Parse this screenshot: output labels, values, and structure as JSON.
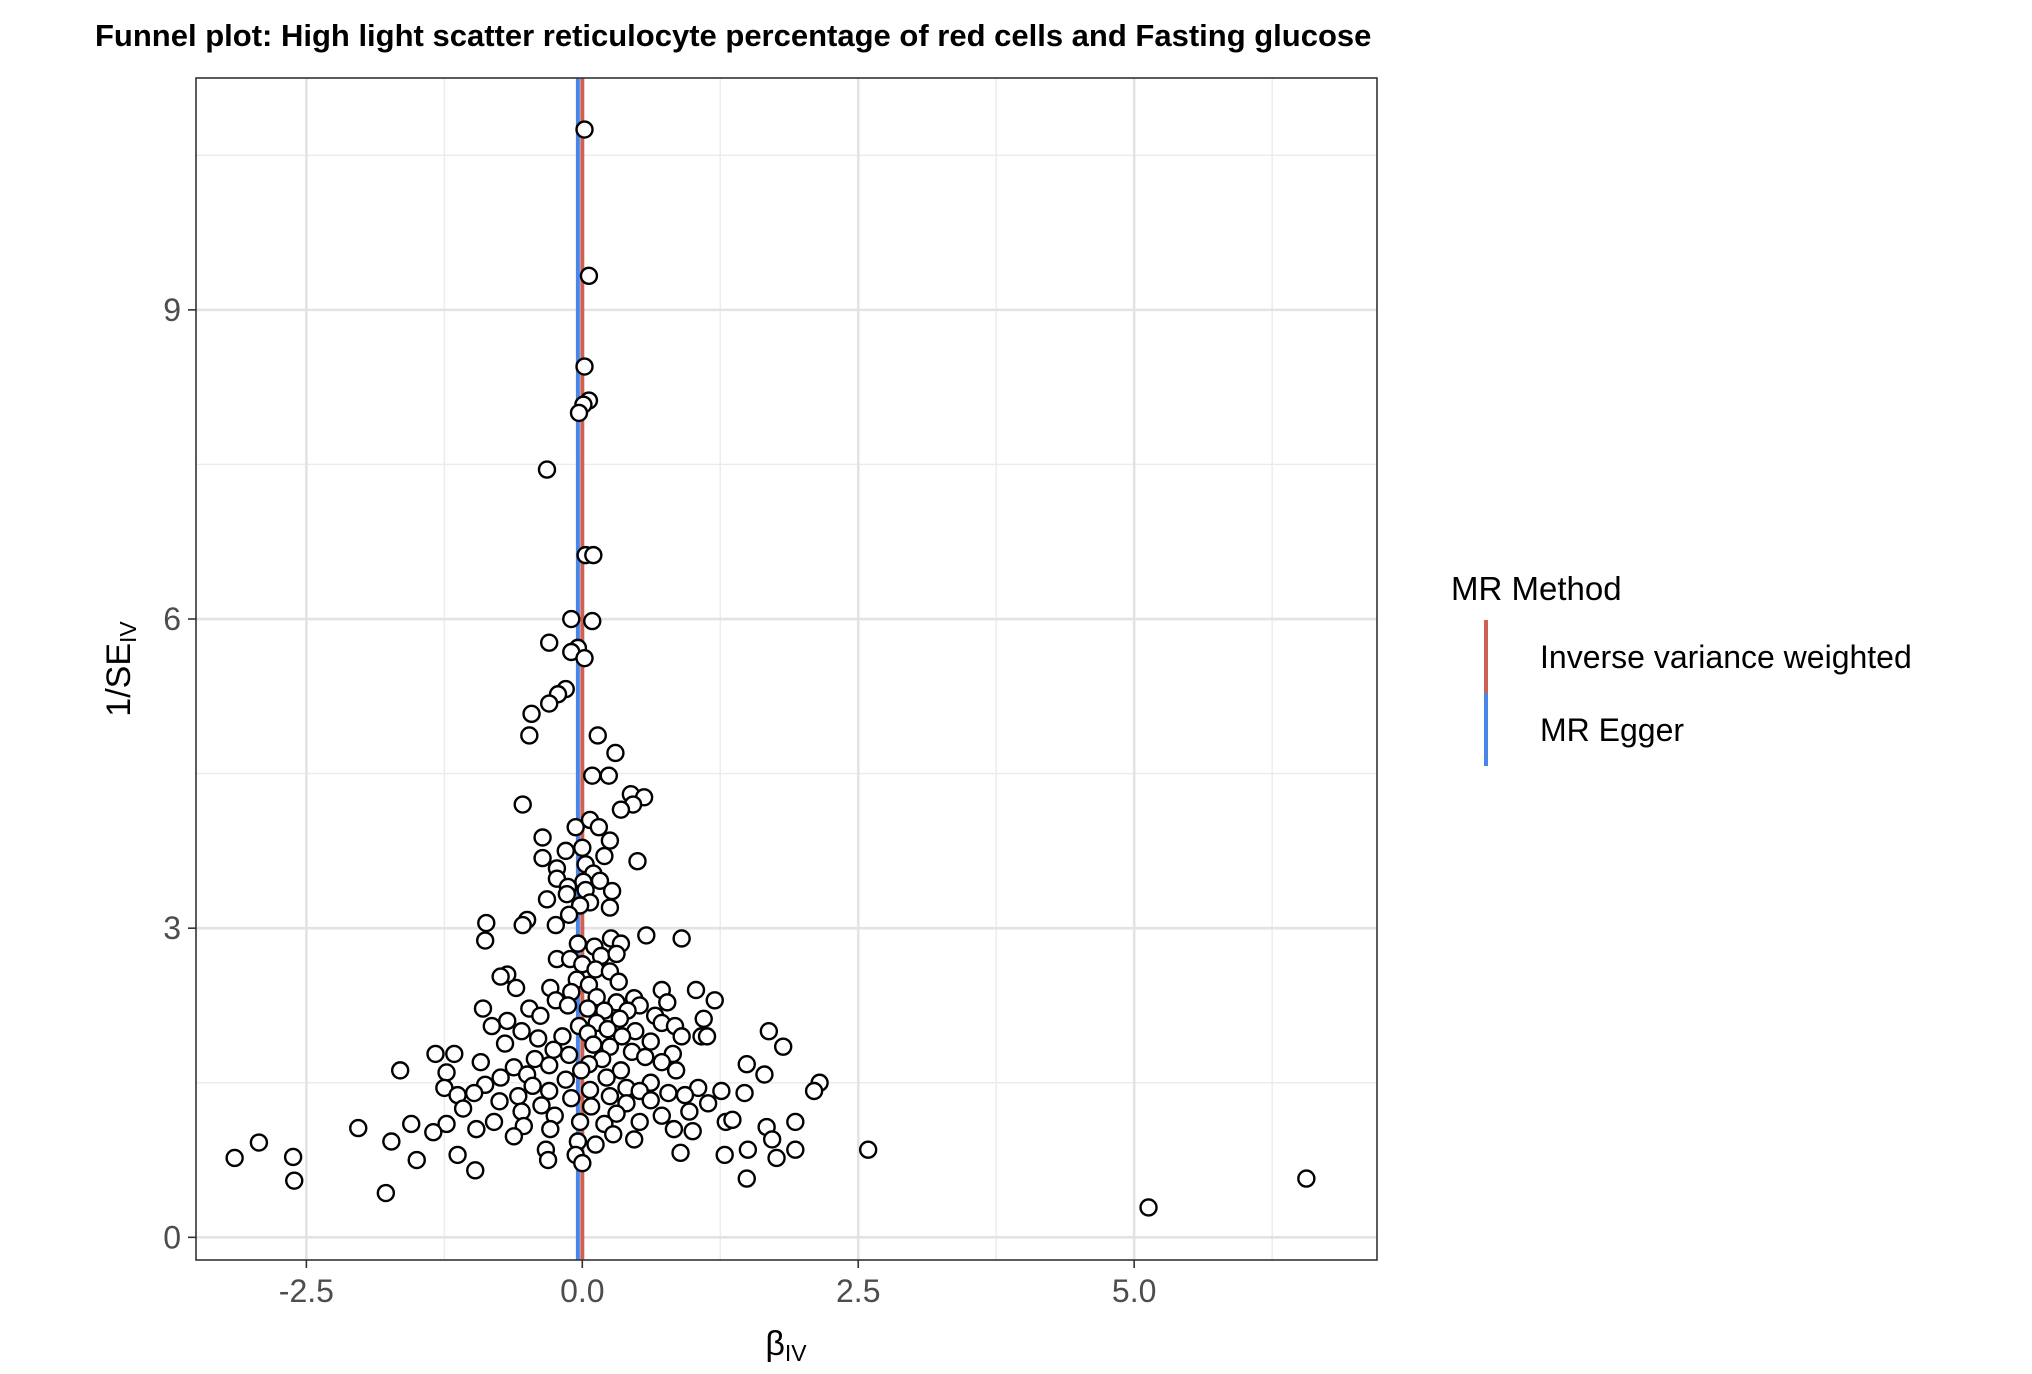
{
  "chart_data": {
    "type": "scatter",
    "title": "Funnel plot: High light scatter reticulocyte percentage of red cells and Fasting glucose",
    "xlabel": "βIV",
    "xlabel_main": "β",
    "xlabel_sub": "IV",
    "ylabel": "1/SEIV",
    "ylabel_main": "1/SE",
    "ylabel_sub": "IV",
    "xlim": [
      -3.5,
      7.2
    ],
    "ylim": [
      -0.22,
      11.25
    ],
    "x_ticks": [
      -2.5,
      0.0,
      2.5,
      5.0
    ],
    "x_tick_labels": [
      "-2.5",
      "0.0",
      "2.5",
      "5.0"
    ],
    "x_minor_ticks": [
      -1.25,
      1.25,
      3.75,
      6.25
    ],
    "y_ticks": [
      0,
      3,
      6,
      9
    ],
    "y_tick_labels": [
      "0",
      "3",
      "6",
      "9"
    ],
    "y_minor_ticks": [
      1.5,
      4.5,
      7.5,
      10.5
    ],
    "grid": true,
    "legend": {
      "title": "MR Method",
      "position": "right",
      "entries": [
        {
          "label": "Inverse variance weighted",
          "color": "#cd6155"
        },
        {
          "label": "MR Egger",
          "color": "#4a86e8"
        }
      ]
    },
    "vlines": [
      {
        "method": "Inverse variance weighted",
        "x": 0.0,
        "color": "#cd6155"
      },
      {
        "method": "MR Egger",
        "x": -0.04,
        "color": "#4a86e8"
      }
    ],
    "points": [
      {
        "x": 0.02,
        "y": 10.75
      },
      {
        "x": 0.06,
        "y": 9.33
      },
      {
        "x": 0.02,
        "y": 8.45
      },
      {
        "x": 0.06,
        "y": 8.12
      },
      {
        "x": 0.01,
        "y": 8.08
      },
      {
        "x": -0.03,
        "y": 8.0
      },
      {
        "x": -0.32,
        "y": 7.45
      },
      {
        "x": 0.03,
        "y": 6.62
      },
      {
        "x": 0.1,
        "y": 6.62
      },
      {
        "x": -0.1,
        "y": 6.0
      },
      {
        "x": 0.09,
        "y": 5.98
      },
      {
        "x": -0.3,
        "y": 5.77
      },
      {
        "x": -0.04,
        "y": 5.72
      },
      {
        "x": -0.1,
        "y": 5.68
      },
      {
        "x": 0.02,
        "y": 5.62
      },
      {
        "x": -0.15,
        "y": 5.32
      },
      {
        "x": -0.22,
        "y": 5.27
      },
      {
        "x": -0.3,
        "y": 5.18
      },
      {
        "x": -0.46,
        "y": 5.08
      },
      {
        "x": -0.48,
        "y": 4.87
      },
      {
        "x": 0.14,
        "y": 4.87
      },
      {
        "x": 0.3,
        "y": 4.7
      },
      {
        "x": 0.09,
        "y": 4.48
      },
      {
        "x": 0.24,
        "y": 4.48
      },
      {
        "x": 0.44,
        "y": 4.3
      },
      {
        "x": 0.56,
        "y": 4.27
      },
      {
        "x": 0.46,
        "y": 4.2
      },
      {
        "x": -0.54,
        "y": 4.2
      },
      {
        "x": 0.35,
        "y": 4.15
      },
      {
        "x": 0.07,
        "y": 4.05
      },
      {
        "x": 0.15,
        "y": 3.98
      },
      {
        "x": -0.06,
        "y": 3.98
      },
      {
        "x": 0.25,
        "y": 3.85
      },
      {
        "x": -0.36,
        "y": 3.88
      },
      {
        "x": 0.0,
        "y": 3.78
      },
      {
        "x": -0.15,
        "y": 3.75
      },
      {
        "x": 0.2,
        "y": 3.7
      },
      {
        "x": -0.36,
        "y": 3.68
      },
      {
        "x": 0.5,
        "y": 3.65
      },
      {
        "x": 0.03,
        "y": 3.62
      },
      {
        "x": -0.23,
        "y": 3.58
      },
      {
        "x": 0.1,
        "y": 3.53
      },
      {
        "x": -0.23,
        "y": 3.48
      },
      {
        "x": 0.01,
        "y": 3.45
      },
      {
        "x": -0.13,
        "y": 3.4
      },
      {
        "x": 0.16,
        "y": 3.46
      },
      {
        "x": 0.27,
        "y": 3.36
      },
      {
        "x": 0.03,
        "y": 3.37
      },
      {
        "x": -0.14,
        "y": 3.33
      },
      {
        "x": -0.32,
        "y": 3.28
      },
      {
        "x": 0.07,
        "y": 3.25
      },
      {
        "x": -0.02,
        "y": 3.22
      },
      {
        "x": 0.25,
        "y": 3.2
      },
      {
        "x": -0.12,
        "y": 3.13
      },
      {
        "x": -0.5,
        "y": 3.08
      },
      {
        "x": -0.87,
        "y": 3.05
      },
      {
        "x": -0.54,
        "y": 3.03
      },
      {
        "x": -0.24,
        "y": 3.03
      },
      {
        "x": 0.58,
        "y": 2.93
      },
      {
        "x": 0.9,
        "y": 2.9
      },
      {
        "x": -0.88,
        "y": 2.88
      },
      {
        "x": 0.26,
        "y": 2.9
      },
      {
        "x": 0.35,
        "y": 2.85
      },
      {
        "x": 0.11,
        "y": 2.82
      },
      {
        "x": -0.04,
        "y": 2.85
      },
      {
        "x": 0.17,
        "y": 2.73
      },
      {
        "x": 0.31,
        "y": 2.75
      },
      {
        "x": -0.23,
        "y": 2.7
      },
      {
        "x": -0.11,
        "y": 2.7
      },
      {
        "x": 0.0,
        "y": 2.65
      },
      {
        "x": 0.12,
        "y": 2.6
      },
      {
        "x": 0.25,
        "y": 2.58
      },
      {
        "x": -0.68,
        "y": 2.55
      },
      {
        "x": -0.74,
        "y": 2.53
      },
      {
        "x": -0.05,
        "y": 2.5
      },
      {
        "x": 0.33,
        "y": 2.48
      },
      {
        "x": 0.06,
        "y": 2.45
      },
      {
        "x": -0.6,
        "y": 2.42
      },
      {
        "x": -0.29,
        "y": 2.42
      },
      {
        "x": 0.72,
        "y": 2.4
      },
      {
        "x": 1.03,
        "y": 2.4
      },
      {
        "x": -0.1,
        "y": 2.38
      },
      {
        "x": 0.13,
        "y": 2.33
      },
      {
        "x": 0.47,
        "y": 2.32
      },
      {
        "x": -0.24,
        "y": 2.3
      },
      {
        "x": 0.31,
        "y": 2.28
      },
      {
        "x": 0.77,
        "y": 2.28
      },
      {
        "x": 1.2,
        "y": 2.3
      },
      {
        "x": 0.52,
        "y": 2.25
      },
      {
        "x": -0.13,
        "y": 2.25
      },
      {
        "x": -0.48,
        "y": 2.22
      },
      {
        "x": 0.05,
        "y": 2.22
      },
      {
        "x": 0.41,
        "y": 2.2
      },
      {
        "x": -0.9,
        "y": 2.22
      },
      {
        "x": 0.2,
        "y": 2.2
      },
      {
        "x": 0.66,
        "y": 2.15
      },
      {
        "x": -0.38,
        "y": 2.15
      },
      {
        "x": 0.34,
        "y": 2.12
      },
      {
        "x": 1.1,
        "y": 2.12
      },
      {
        "x": -0.68,
        "y": 2.1
      },
      {
        "x": 0.13,
        "y": 2.08
      },
      {
        "x": -0.03,
        "y": 2.05
      },
      {
        "x": 0.72,
        "y": 2.08
      },
      {
        "x": -0.82,
        "y": 2.05
      },
      {
        "x": 0.84,
        "y": 2.05
      },
      {
        "x": 0.23,
        "y": 2.02
      },
      {
        "x": -0.55,
        "y": 2.0
      },
      {
        "x": 0.48,
        "y": 2.0
      },
      {
        "x": 1.69,
        "y": 2.0
      },
      {
        "x": 0.05,
        "y": 1.98
      },
      {
        "x": -0.18,
        "y": 1.95
      },
      {
        "x": 0.36,
        "y": 1.95
      },
      {
        "x": 0.9,
        "y": 1.95
      },
      {
        "x": 1.08,
        "y": 1.95
      },
      {
        "x": 1.13,
        "y": 1.95
      },
      {
        "x": -0.4,
        "y": 1.93
      },
      {
        "x": 0.62,
        "y": 1.9
      },
      {
        "x": -0.7,
        "y": 1.88
      },
      {
        "x": 0.1,
        "y": 1.87
      },
      {
        "x": 0.25,
        "y": 1.85
      },
      {
        "x": 1.82,
        "y": 1.85
      },
      {
        "x": -0.26,
        "y": 1.82
      },
      {
        "x": 0.45,
        "y": 1.8
      },
      {
        "x": -1.33,
        "y": 1.78
      },
      {
        "x": -1.16,
        "y": 1.78
      },
      {
        "x": 0.82,
        "y": 1.78
      },
      {
        "x": -0.12,
        "y": 1.77
      },
      {
        "x": 0.57,
        "y": 1.75
      },
      {
        "x": -0.43,
        "y": 1.73
      },
      {
        "x": 0.18,
        "y": 1.73
      },
      {
        "x": 0.72,
        "y": 1.7
      },
      {
        "x": -0.92,
        "y": 1.7
      },
      {
        "x": 1.49,
        "y": 1.68
      },
      {
        "x": 0.06,
        "y": 1.68
      },
      {
        "x": -0.3,
        "y": 1.67
      },
      {
        "x": -0.62,
        "y": 1.65
      },
      {
        "x": 0.35,
        "y": 1.62
      },
      {
        "x": -1.65,
        "y": 1.62
      },
      {
        "x": -1.23,
        "y": 1.6
      },
      {
        "x": 0.85,
        "y": 1.62
      },
      {
        "x": -0.01,
        "y": 1.62
      },
      {
        "x": -0.5,
        "y": 1.58
      },
      {
        "x": 1.65,
        "y": 1.58
      },
      {
        "x": -0.74,
        "y": 1.55
      },
      {
        "x": 0.22,
        "y": 1.55
      },
      {
        "x": -0.15,
        "y": 1.53
      },
      {
        "x": 2.15,
        "y": 1.5
      },
      {
        "x": 0.62,
        "y": 1.5
      },
      {
        "x": -0.88,
        "y": 1.48
      },
      {
        "x": -0.45,
        "y": 1.47
      },
      {
        "x": 0.4,
        "y": 1.45
      },
      {
        "x": 1.05,
        "y": 1.45
      },
      {
        "x": -1.25,
        "y": 1.45
      },
      {
        "x": 0.07,
        "y": 1.43
      },
      {
        "x": -0.3,
        "y": 1.42
      },
      {
        "x": 0.52,
        "y": 1.42
      },
      {
        "x": 2.1,
        "y": 1.42
      },
      {
        "x": 1.26,
        "y": 1.42
      },
      {
        "x": -0.98,
        "y": 1.4
      },
      {
        "x": 0.78,
        "y": 1.4
      },
      {
        "x": 1.47,
        "y": 1.4
      },
      {
        "x": -1.13,
        "y": 1.38
      },
      {
        "x": -0.58,
        "y": 1.37
      },
      {
        "x": 0.93,
        "y": 1.38
      },
      {
        "x": 0.25,
        "y": 1.37
      },
      {
        "x": -0.1,
        "y": 1.35
      },
      {
        "x": 0.62,
        "y": 1.33
      },
      {
        "x": -0.75,
        "y": 1.32
      },
      {
        "x": 1.14,
        "y": 1.3
      },
      {
        "x": 0.4,
        "y": 1.3
      },
      {
        "x": -0.37,
        "y": 1.28
      },
      {
        "x": 0.08,
        "y": 1.27
      },
      {
        "x": -1.08,
        "y": 1.25
      },
      {
        "x": 0.97,
        "y": 1.22
      },
      {
        "x": -0.55,
        "y": 1.22
      },
      {
        "x": 0.31,
        "y": 1.2
      },
      {
        "x": 0.72,
        "y": 1.18
      },
      {
        "x": -0.25,
        "y": 1.18
      },
      {
        "x": 1.3,
        "y": 1.12
      },
      {
        "x": -0.8,
        "y": 1.12
      },
      {
        "x": -0.02,
        "y": 1.12
      },
      {
        "x": 0.52,
        "y": 1.12
      },
      {
        "x": 1.93,
        "y": 1.12
      },
      {
        "x": 1.36,
        "y": 1.14
      },
      {
        "x": -1.55,
        "y": 1.1
      },
      {
        "x": -1.23,
        "y": 1.1
      },
      {
        "x": 0.2,
        "y": 1.1
      },
      {
        "x": -0.53,
        "y": 1.08
      },
      {
        "x": -2.03,
        "y": 1.06
      },
      {
        "x": 1.67,
        "y": 1.07
      },
      {
        "x": -0.96,
        "y": 1.05
      },
      {
        "x": -0.29,
        "y": 1.05
      },
      {
        "x": 0.83,
        "y": 1.05
      },
      {
        "x": 1.0,
        "y": 1.03
      },
      {
        "x": -1.35,
        "y": 1.02
      },
      {
        "x": 0.28,
        "y": 1.0
      },
      {
        "x": -0.62,
        "y": 0.98
      },
      {
        "x": 1.72,
        "y": 0.95
      },
      {
        "x": -1.73,
        "y": 0.93
      },
      {
        "x": -0.04,
        "y": 0.93
      },
      {
        "x": 0.47,
        "y": 0.95
      },
      {
        "x": -2.93,
        "y": 0.92
      },
      {
        "x": 0.12,
        "y": 0.9
      },
      {
        "x": 2.59,
        "y": 0.85
      },
      {
        "x": -0.33,
        "y": 0.85
      },
      {
        "x": 1.5,
        "y": 0.85
      },
      {
        "x": 1.93,
        "y": 0.85
      },
      {
        "x": -0.06,
        "y": 0.8
      },
      {
        "x": 0.89,
        "y": 0.82
      },
      {
        "x": 1.29,
        "y": 0.8
      },
      {
        "x": -2.62,
        "y": 0.78
      },
      {
        "x": -1.13,
        "y": 0.8
      },
      {
        "x": -3.15,
        "y": 0.77
      },
      {
        "x": -1.5,
        "y": 0.75
      },
      {
        "x": -0.31,
        "y": 0.75
      },
      {
        "x": 1.76,
        "y": 0.77
      },
      {
        "x": 0.0,
        "y": 0.72
      },
      {
        "x": -0.97,
        "y": 0.65
      },
      {
        "x": 1.49,
        "y": 0.57
      },
      {
        "x": 6.56,
        "y": 0.57
      },
      {
        "x": -2.61,
        "y": 0.55
      },
      {
        "x": -1.78,
        "y": 0.43
      },
      {
        "x": 5.13,
        "y": 0.29
      }
    ]
  }
}
